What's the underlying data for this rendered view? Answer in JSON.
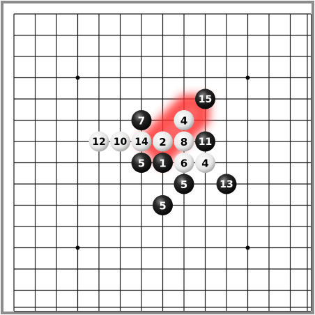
{
  "board": {
    "size": 15,
    "background": "#ffffff",
    "frame_color": "#8c8c8c",
    "line_color": "#1a1a1a",
    "star_points": [
      [
        3,
        3
      ],
      [
        11,
        3
      ],
      [
        3,
        11
      ],
      [
        11,
        11
      ]
    ]
  },
  "highlight": {
    "color": "#ff3030",
    "path": [
      [
        6,
        6
      ],
      [
        8,
        4
      ],
      [
        9,
        4
      ],
      [
        9,
        5
      ],
      [
        7,
        7
      ]
    ]
  },
  "stones": [
    {
      "col": 9,
      "row": 4,
      "color": "black",
      "label": "15"
    },
    {
      "col": 6,
      "row": 5,
      "color": "black",
      "label": "7"
    },
    {
      "col": 8,
      "row": 5,
      "color": "white",
      "label": "4"
    },
    {
      "col": 4,
      "row": 6,
      "color": "white",
      "label": "12"
    },
    {
      "col": 5,
      "row": 6,
      "color": "white",
      "label": "10"
    },
    {
      "col": 6,
      "row": 6,
      "color": "white",
      "label": "14"
    },
    {
      "col": 7,
      "row": 6,
      "color": "white",
      "label": "2"
    },
    {
      "col": 8,
      "row": 6,
      "color": "white",
      "label": "8"
    },
    {
      "col": 9,
      "row": 6,
      "color": "black",
      "label": "11"
    },
    {
      "col": 6,
      "row": 7,
      "color": "black",
      "label": "5"
    },
    {
      "col": 7,
      "row": 7,
      "color": "black",
      "label": "1"
    },
    {
      "col": 8,
      "row": 7,
      "color": "white",
      "label": "6"
    },
    {
      "col": 9,
      "row": 7,
      "color": "white",
      "label": "4"
    },
    {
      "col": 8,
      "row": 8,
      "color": "black",
      "label": "5"
    },
    {
      "col": 10,
      "row": 8,
      "color": "black",
      "label": "13"
    },
    {
      "col": 7,
      "row": 9,
      "color": "black",
      "label": "5"
    }
  ]
}
